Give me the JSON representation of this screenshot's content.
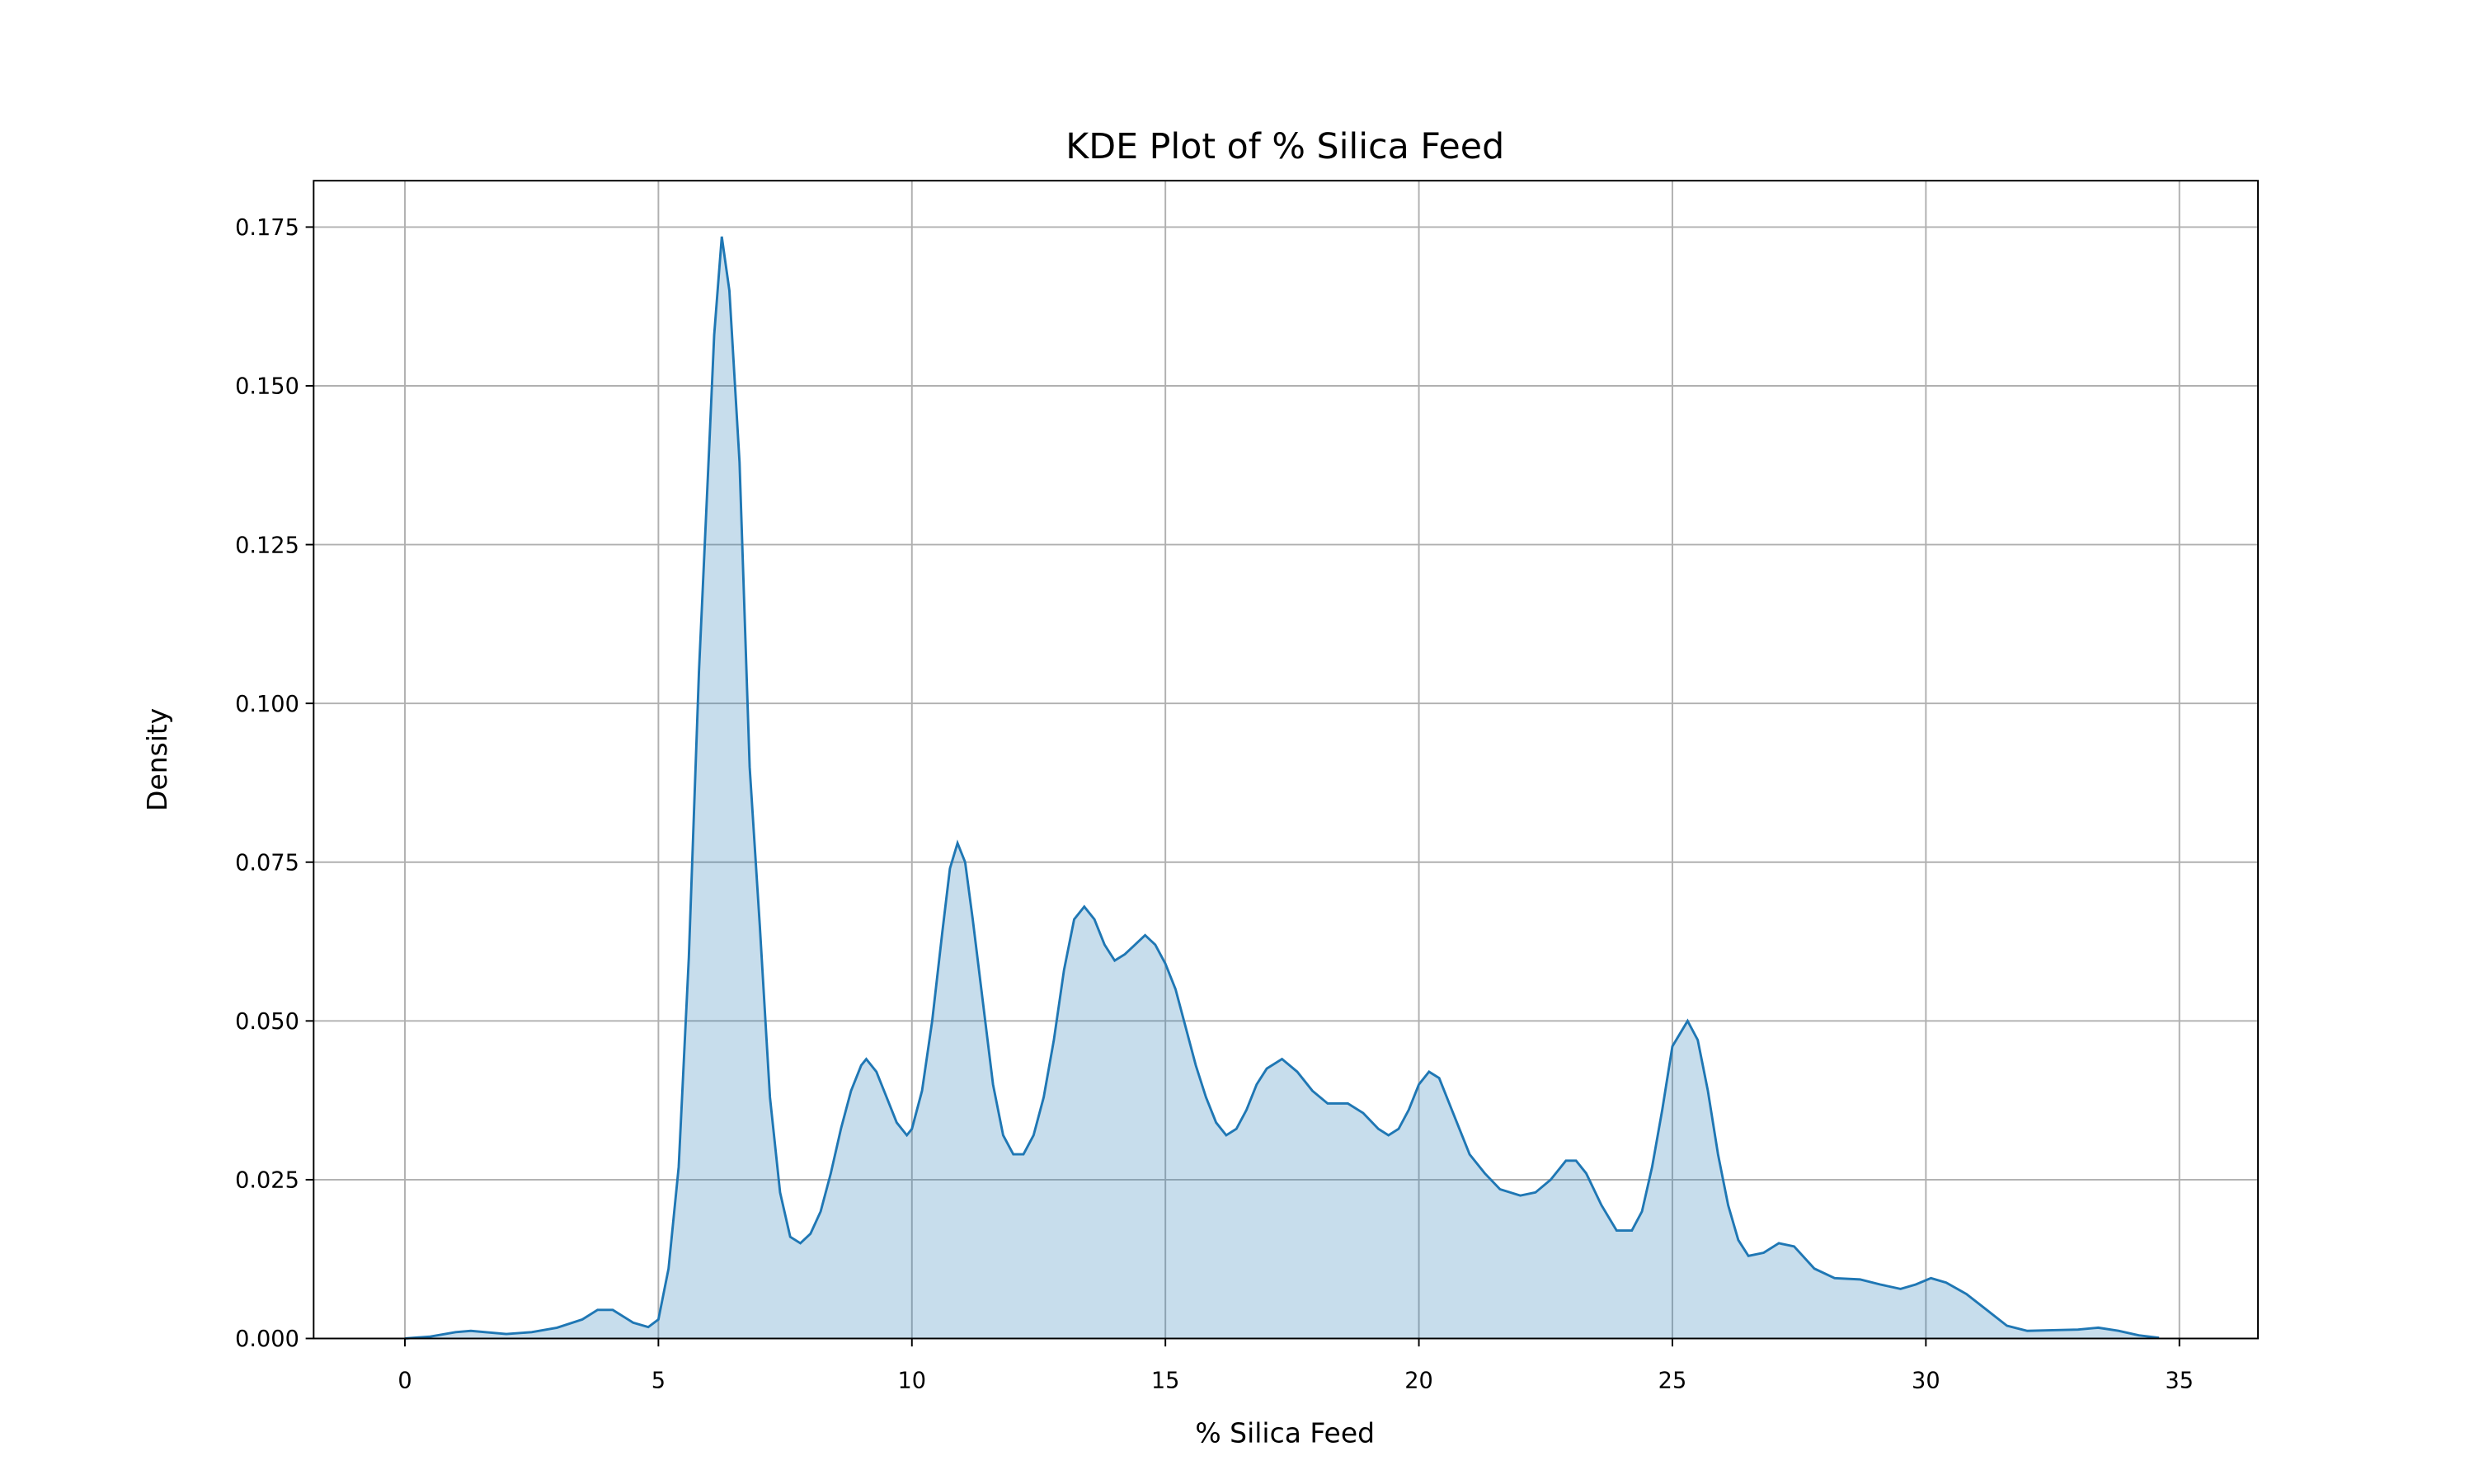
{
  "chart_data": {
    "type": "area",
    "title": "KDE Plot of % Silica Feed",
    "x_label": "% Silica Feed",
    "y_label": "Density",
    "color": "#1f77b4",
    "grid": true,
    "x": [
      0,
      0.5,
      1,
      1.3,
      2,
      2.5,
      3,
      3.5,
      3.8,
      4.1,
      4.5,
      4.8,
      5.0,
      5.2,
      5.4,
      5.6,
      5.8,
      6.0,
      6.1,
      6.25,
      6.4,
      6.6,
      6.8,
      7.0,
      7.2,
      7.4,
      7.6,
      7.8,
      8.0,
      8.2,
      8.4,
      8.6,
      8.8,
      9.0,
      9.1,
      9.3,
      9.5,
      9.7,
      9.9,
      10.0,
      10.2,
      10.4,
      10.6,
      10.75,
      10.9,
      11.05,
      11.2,
      11.4,
      11.6,
      11.8,
      12.0,
      12.2,
      12.4,
      12.6,
      12.8,
      13.0,
      13.2,
      13.4,
      13.6,
      13.8,
      14.0,
      14.2,
      14.4,
      14.6,
      14.8,
      15.0,
      15.2,
      15.4,
      15.6,
      15.8,
      16.0,
      16.2,
      16.4,
      16.6,
      16.8,
      17.0,
      17.3,
      17.6,
      17.9,
      18.2,
      18.6,
      18.9,
      19.2,
      19.4,
      19.6,
      19.8,
      20.0,
      20.2,
      20.4,
      20.6,
      20.8,
      21.0,
      21.3,
      21.6,
      22.0,
      22.3,
      22.6,
      22.9,
      23.1,
      23.3,
      23.6,
      23.9,
      24.2,
      24.4,
      24.6,
      24.8,
      25.0,
      25.3,
      25.5,
      25.7,
      25.9,
      26.1,
      26.3,
      26.5,
      26.8,
      27.1,
      27.4,
      27.8,
      28.2,
      28.7,
      29.1,
      29.5,
      29.8,
      30.1,
      30.4,
      30.8,
      31.2,
      31.6,
      32.0,
      32.5,
      33.0,
      33.4,
      33.8,
      34.2,
      34.6
    ],
    "values": [
      0,
      0.0003,
      0.001,
      0.0012,
      0.0007,
      0.001,
      0.0017,
      0.003,
      0.0045,
      0.0045,
      0.0025,
      0.0018,
      0.003,
      0.011,
      0.027,
      0.06,
      0.105,
      0.14,
      0.158,
      0.1735,
      0.165,
      0.138,
      0.09,
      0.065,
      0.038,
      0.023,
      0.016,
      0.015,
      0.0165,
      0.02,
      0.026,
      0.033,
      0.039,
      0.043,
      0.044,
      0.042,
      0.038,
      0.034,
      0.032,
      0.033,
      0.039,
      0.05,
      0.064,
      0.074,
      0.078,
      0.075,
      0.066,
      0.053,
      0.04,
      0.032,
      0.029,
      0.029,
      0.032,
      0.038,
      0.047,
      0.058,
      0.066,
      0.068,
      0.066,
      0.062,
      0.0595,
      0.0605,
      0.062,
      0.0635,
      0.062,
      0.059,
      0.055,
      0.049,
      0.043,
      0.038,
      0.034,
      0.032,
      0.033,
      0.036,
      0.04,
      0.0425,
      0.044,
      0.042,
      0.039,
      0.037,
      0.037,
      0.0355,
      0.033,
      0.032,
      0.033,
      0.036,
      0.04,
      0.042,
      0.041,
      0.037,
      0.033,
      0.029,
      0.026,
      0.0235,
      0.0225,
      0.023,
      0.025,
      0.028,
      0.028,
      0.026,
      0.021,
      0.017,
      0.017,
      0.02,
      0.027,
      0.036,
      0.046,
      0.05,
      0.047,
      0.039,
      0.029,
      0.021,
      0.0155,
      0.013,
      0.0135,
      0.015,
      0.0145,
      0.011,
      0.0095,
      0.0093,
      0.0085,
      0.0078,
      0.0085,
      0.0095,
      0.0088,
      0.007,
      0.0045,
      0.002,
      0.0012,
      0.0013,
      0.0014,
      0.0017,
      0.0012,
      0.0005,
      0.0001
    ],
    "xlim": [
      -1.8,
      36.55
    ],
    "xticks": [
      0,
      5,
      10,
      15,
      20,
      25,
      30,
      35
    ],
    "ylim": [
      0,
      0.1823
    ],
    "yticks": [
      {
        "value": 0,
        "label": "0.000"
      },
      0.025,
      {
        "value": 0.05,
        "label": "0.050"
      },
      0.075,
      {
        "value": 0.1,
        "label": "0.100"
      },
      0.125,
      {
        "value": 0.15,
        "label": "0.150"
      },
      0.175
    ]
  }
}
